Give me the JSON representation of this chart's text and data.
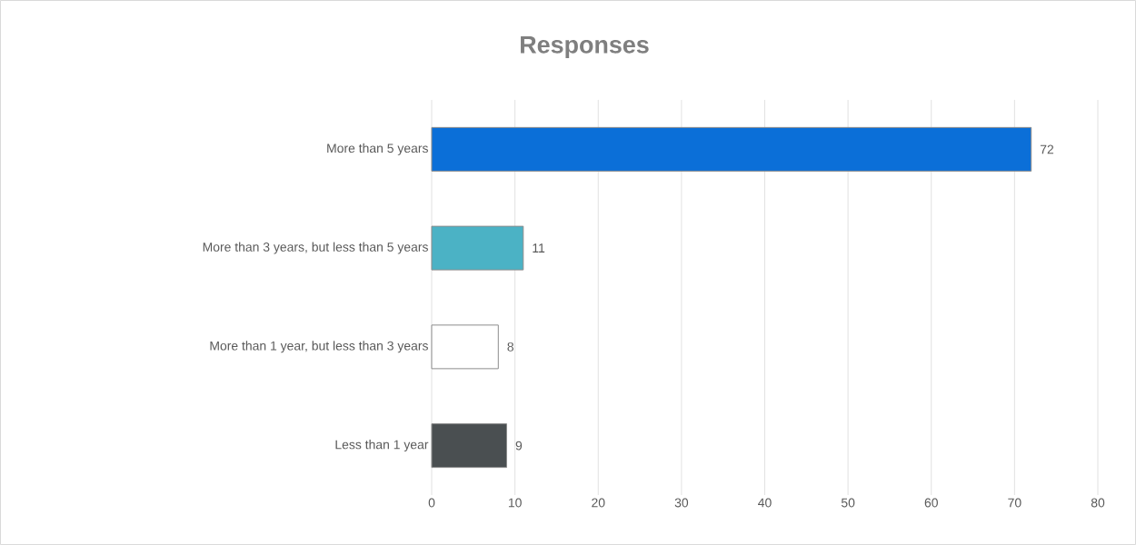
{
  "chart_data": {
    "type": "bar",
    "orientation": "horizontal",
    "title": "Responses",
    "categories": [
      "More than 5 years",
      "More than 3 years, but less than 5 years",
      "More than 1 year, but less than 3 years",
      "Less than 1 year"
    ],
    "values": [
      72,
      11,
      8,
      9
    ],
    "colors": [
      "#0b6fd8",
      "#4bb2c5",
      "#ffffff",
      "#4a4f51"
    ],
    "xlim": [
      0,
      80
    ],
    "xticks": [
      0,
      10,
      20,
      30,
      40,
      50,
      60,
      70,
      80
    ],
    "grid": "x",
    "data_labels": true
  }
}
